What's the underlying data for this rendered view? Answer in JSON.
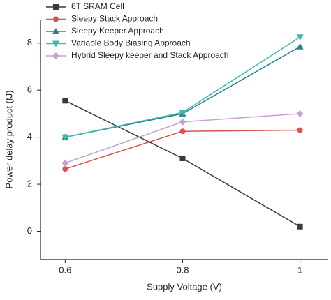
{
  "chart_data": {
    "type": "line",
    "x_label": "Supply Voltage (V)",
    "y_label": "Power delay product (fJ)",
    "x": [
      0.6,
      0.8,
      1
    ],
    "series": [
      {
        "name": "6T SRAM Cell",
        "color": "#3a3a3a",
        "marker": "square",
        "values": [
          5.55,
          3.1,
          0.2
        ]
      },
      {
        "name": "Sleepy Stack Approach",
        "color": "#d9534f",
        "marker": "circle",
        "values": [
          2.65,
          4.25,
          4.3
        ]
      },
      {
        "name": "Sleepy Keeper Approach",
        "color": "#2b7f95",
        "marker": "triangle-up",
        "values": [
          4.0,
          5.0,
          7.85
        ]
      },
      {
        "name": "Variable Body Biasing Approach",
        "color": "#3fb8a6",
        "marker": "triangle-down",
        "values": [
          4.0,
          5.05,
          8.25
        ]
      },
      {
        "name": "Hybrid Sleepy keeper and Stack Approach",
        "color": "#c79fd6",
        "marker": "diamond",
        "values": [
          2.9,
          4.65,
          5.0
        ]
      }
    ],
    "xlim": [
      0.558,
      1.048
    ],
    "xticks": [
      0.6,
      0.8,
      1
    ],
    "ylim": [
      -1.2,
      9.0
    ],
    "yticks": [
      0,
      2,
      4,
      6,
      8
    ],
    "grid": false,
    "legend": "top-left"
  }
}
